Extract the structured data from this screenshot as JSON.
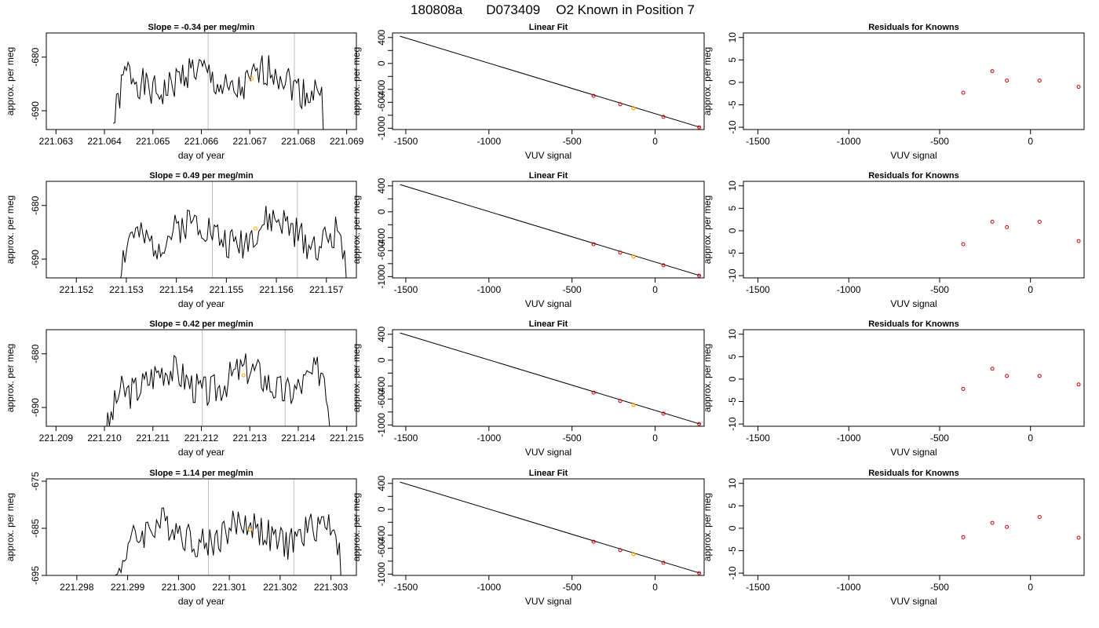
{
  "figure_title": {
    "run": "180808a",
    "tank": "D073409",
    "desc": "O2 Known in Position  7"
  },
  "colors": {
    "trace": "#000000",
    "highlight": "#ffa500",
    "point": "#cd0000",
    "vline": "#bebebe",
    "axis": "#000000"
  },
  "chart_data": [
    {
      "row": 1,
      "panel": "time-series",
      "type": "line",
      "title": "Slope =  -0.34  per meg/min",
      "xlabel": "day of year",
      "ylabel": "approx. per meg",
      "xlim": [
        221.0628,
        221.0692
      ],
      "ylim": [
        -693.5,
        -675.5
      ],
      "xticks": [
        221.063,
        221.064,
        221.065,
        221.066,
        221.067,
        221.068,
        221.069
      ],
      "xtick_labels": [
        "221.063",
        "221.064",
        "221.065",
        "221.066",
        "221.067",
        "221.068",
        "221.069"
      ],
      "yticks": [
        -690,
        -680
      ],
      "ytick_labels": [
        "-690",
        "-680"
      ],
      "x_start": 221.06418,
      "x_end": 221.06862,
      "baseline": -684.5,
      "amplitude": 4,
      "vlines": [
        221.06614,
        221.06792
      ],
      "marker": [
        221.06704,
        -684.0
      ]
    },
    {
      "row": 1,
      "panel": "linear-fit",
      "type": "scatter",
      "title": "Linear Fit",
      "xlabel": "VUV signal",
      "ylabel": "approx. per meg",
      "xlim": [
        -1580,
        295
      ],
      "ylim": [
        -1020,
        470
      ],
      "xticks": [
        -1500,
        -1000,
        -500,
        0
      ],
      "xtick_labels": [
        "-1500",
        "-1000",
        "-500",
        "0"
      ],
      "yticks": [
        -1000,
        -800,
        -600,
        -400,
        -200,
        0,
        200,
        400
      ],
      "ytick_labels": [
        "-1000",
        "",
        "-600",
        "-400",
        "",
        "0",
        "",
        "400"
      ],
      "fit_line": [
        [
          -1535,
          420
        ],
        [
          270,
          -985
        ]
      ],
      "points": [
        [
          -370,
          -500
        ],
        [
          -210,
          -630
        ],
        [
          50,
          -825
        ],
        [
          265,
          -985
        ]
      ],
      "highlight_point": [
        -130,
        -690
      ]
    },
    {
      "row": 1,
      "panel": "residuals",
      "type": "scatter",
      "title": "Residuals for Knowns",
      "xlabel": "VUV signal",
      "ylabel": "approx. per meg",
      "xlim": [
        -1580,
        295
      ],
      "ylim": [
        -10.5,
        11
      ],
      "xticks": [
        -1500,
        -1000,
        -500,
        0
      ],
      "xtick_labels": [
        "-1500",
        "-1000",
        "-500",
        "0"
      ],
      "yticks": [
        -10,
        -5,
        0,
        5,
        10
      ],
      "ytick_labels": [
        "-10",
        "-5",
        "0",
        "5",
        "10"
      ],
      "points": [
        [
          -370,
          -2.3
        ],
        [
          -210,
          2.5
        ],
        [
          -130,
          0.4
        ],
        [
          50,
          0.4
        ],
        [
          265,
          -1.0
        ]
      ]
    },
    {
      "row": 2,
      "panel": "time-series",
      "type": "line",
      "title": "Slope =  0.49  per meg/min",
      "xlabel": "day of year",
      "ylabel": "approx. per meg",
      "xlim": [
        221.1514,
        221.1576
      ],
      "ylim": [
        -693.5,
        -675.5
      ],
      "xticks": [
        221.152,
        221.153,
        221.154,
        221.155,
        221.156,
        221.157
      ],
      "xtick_labels": [
        "221.152",
        "221.153",
        "221.154",
        "221.155",
        "221.156",
        "221.157"
      ],
      "yticks": [
        -690,
        -680
      ],
      "ytick_labels": [
        "-690",
        "-680"
      ],
      "x_start": 221.15283,
      "x_end": 221.15747,
      "baseline": -685,
      "amplitude": 4,
      "vlines": [
        221.15472,
        221.15642
      ],
      "marker": [
        221.15558,
        -684.3
      ]
    },
    {
      "row": 2,
      "panel": "linear-fit",
      "type": "scatter",
      "title": "Linear Fit",
      "xlabel": "VUV signal",
      "ylabel": "approx. per meg",
      "xlim": [
        -1580,
        295
      ],
      "ylim": [
        -1020,
        470
      ],
      "xticks": [
        -1500,
        -1000,
        -500,
        0
      ],
      "xtick_labels": [
        "-1500",
        "-1000",
        "-500",
        "0"
      ],
      "yticks": [
        -1000,
        -800,
        -600,
        -400,
        -200,
        0,
        200,
        400
      ],
      "ytick_labels": [
        "-1000",
        "",
        "-600",
        "-400",
        "",
        "0",
        "",
        "400"
      ],
      "fit_line": [
        [
          -1535,
          420
        ],
        [
          270,
          -985
        ]
      ],
      "points": [
        [
          -370,
          -500
        ],
        [
          -210,
          -630
        ],
        [
          50,
          -825
        ],
        [
          265,
          -985
        ]
      ],
      "highlight_point": [
        -130,
        -690
      ]
    },
    {
      "row": 2,
      "panel": "residuals",
      "type": "scatter",
      "title": "Residuals for Knowns",
      "xlabel": "VUV signal",
      "ylabel": "approx. per meg",
      "xlim": [
        -1580,
        295
      ],
      "ylim": [
        -10.5,
        11
      ],
      "xticks": [
        -1500,
        -1000,
        -500,
        0
      ],
      "xtick_labels": [
        "-1500",
        "-1000",
        "-500",
        "0"
      ],
      "yticks": [
        -10,
        -5,
        0,
        5,
        10
      ],
      "ytick_labels": [
        "-10",
        "-5",
        "0",
        "5",
        "10"
      ],
      "points": [
        [
          -370,
          -3.0
        ],
        [
          -210,
          2.0
        ],
        [
          -130,
          0.8
        ],
        [
          50,
          2.0
        ],
        [
          265,
          -2.3
        ]
      ]
    },
    {
      "row": 3,
      "panel": "time-series",
      "type": "line",
      "title": "Slope =  0.42  per meg/min",
      "xlabel": "day of year",
      "ylabel": "approx. per meg",
      "xlim": [
        221.2088,
        221.2152
      ],
      "ylim": [
        -693.5,
        -675.5
      ],
      "xticks": [
        221.209,
        221.21,
        221.211,
        221.212,
        221.213,
        221.214,
        221.215
      ],
      "xtick_labels": [
        "221.209",
        "221.210",
        "221.211",
        "221.212",
        "221.213",
        "221.214",
        "221.215"
      ],
      "yticks": [
        -690,
        -680
      ],
      "ytick_labels": [
        "-690",
        "-680"
      ],
      "x_start": 221.21003,
      "x_end": 221.21472,
      "baseline": -685,
      "amplitude": 4,
      "vlines": [
        221.21202,
        221.21373
      ],
      "marker": [
        221.21287,
        -684.0
      ]
    },
    {
      "row": 3,
      "panel": "linear-fit",
      "type": "scatter",
      "title": "Linear Fit",
      "xlabel": "VUV signal",
      "ylabel": "approx. per meg",
      "xlim": [
        -1580,
        295
      ],
      "ylim": [
        -1020,
        470
      ],
      "xticks": [
        -1500,
        -1000,
        -500,
        0
      ],
      "xtick_labels": [
        "-1500",
        "-1000",
        "-500",
        "0"
      ],
      "yticks": [
        -1000,
        -800,
        -600,
        -400,
        -200,
        0,
        200,
        400
      ],
      "ytick_labels": [
        "-1000",
        "",
        "-600",
        "-400",
        "",
        "0",
        "",
        "400"
      ],
      "fit_line": [
        [
          -1535,
          420
        ],
        [
          270,
          -985
        ]
      ],
      "points": [
        [
          -370,
          -500
        ],
        [
          -210,
          -630
        ],
        [
          50,
          -825
        ],
        [
          265,
          -985
        ]
      ],
      "highlight_point": [
        -130,
        -690
      ]
    },
    {
      "row": 3,
      "panel": "residuals",
      "type": "scatter",
      "title": "Residuals for Knowns",
      "xlabel": "VUV signal",
      "ylabel": "approx. per meg",
      "xlim": [
        -1580,
        295
      ],
      "ylim": [
        -10.5,
        11
      ],
      "xticks": [
        -1500,
        -1000,
        -500,
        0
      ],
      "xtick_labels": [
        "-1500",
        "-1000",
        "-500",
        "0"
      ],
      "yticks": [
        -10,
        -5,
        0,
        5,
        10
      ],
      "ytick_labels": [
        "-10",
        "-5",
        "0",
        "5",
        "10"
      ],
      "points": [
        [
          -370,
          -2.2
        ],
        [
          -210,
          2.3
        ],
        [
          -130,
          0.7
        ],
        [
          50,
          0.7
        ],
        [
          265,
          -1.2
        ]
      ]
    },
    {
      "row": 4,
      "panel": "time-series",
      "type": "line",
      "title": "Slope =  1.14  per meg/min",
      "xlabel": "day of year",
      "ylabel": "approx. per meg",
      "xlim": [
        221.2974,
        221.3035
      ],
      "ylim": [
        -695,
        -674.5
      ],
      "xticks": [
        221.298,
        221.299,
        221.3,
        221.301,
        221.302,
        221.303
      ],
      "xtick_labels": [
        "221.298",
        "221.299",
        "221.300",
        "221.301",
        "221.302",
        "221.303"
      ],
      "yticks": [
        -695,
        -685,
        -675
      ],
      "ytick_labels": [
        "-695",
        "-685",
        "-675"
      ],
      "x_start": 221.29873,
      "x_end": 221.30327,
      "baseline": -686,
      "amplitude": 4.5,
      "vlines": [
        221.30059,
        221.30227
      ],
      "marker": [
        221.30141,
        -685.3
      ]
    },
    {
      "row": 4,
      "panel": "linear-fit",
      "type": "scatter",
      "title": "Linear Fit",
      "xlabel": "VUV signal",
      "ylabel": "approx. per meg",
      "xlim": [
        -1580,
        295
      ],
      "ylim": [
        -1020,
        470
      ],
      "xticks": [
        -1500,
        -1000,
        -500,
        0
      ],
      "xtick_labels": [
        "-1500",
        "-1000",
        "-500",
        "0"
      ],
      "yticks": [
        -1000,
        -800,
        -600,
        -400,
        -200,
        0,
        200,
        400
      ],
      "ytick_labels": [
        "-1000",
        "",
        "-600",
        "-400",
        "",
        "0",
        "",
        "400"
      ],
      "fit_line": [
        [
          -1535,
          420
        ],
        [
          270,
          -985
        ]
      ],
      "points": [
        [
          -370,
          -500
        ],
        [
          -210,
          -630
        ],
        [
          50,
          -825
        ],
        [
          265,
          -985
        ]
      ],
      "highlight_point": [
        -130,
        -690
      ]
    },
    {
      "row": 4,
      "panel": "residuals",
      "type": "scatter",
      "title": "Residuals for Knowns",
      "xlabel": "VUV signal",
      "ylabel": "approx. per meg",
      "xlim": [
        -1580,
        295
      ],
      "ylim": [
        -10.5,
        11
      ],
      "xticks": [
        -1500,
        -1000,
        -500,
        0
      ],
      "xtick_labels": [
        "-1500",
        "-1000",
        "-500",
        "0"
      ],
      "yticks": [
        -10,
        -5,
        0,
        5,
        10
      ],
      "ytick_labels": [
        "-10",
        "-5",
        "0",
        "5",
        "10"
      ],
      "points": [
        [
          -370,
          -2.0
        ],
        [
          -210,
          1.2
        ],
        [
          -130,
          0.3
        ],
        [
          50,
          2.5
        ],
        [
          265,
          -2.1
        ]
      ]
    }
  ]
}
